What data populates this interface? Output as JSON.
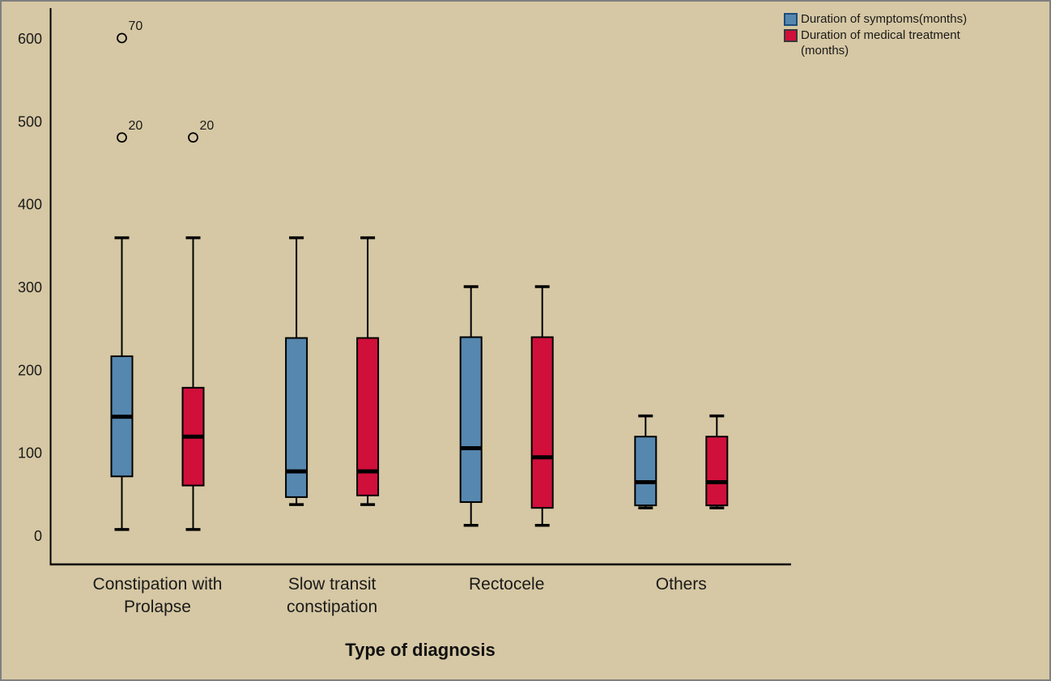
{
  "colors": {
    "background": "#d6c8a4",
    "axis": "#000000",
    "text": "#1a1a1a",
    "series_blue": "#5687af",
    "series_red": "#d00f3a",
    "legend_blue_border": "#1b4e79",
    "legend_red_border": "#3a3a3a"
  },
  "legend": {
    "items": [
      {
        "label": "Duration of symptoms(months)"
      },
      {
        "label": "Duration of medical treatment\n(months)"
      }
    ]
  },
  "chart_data": {
    "type": "boxplot",
    "title": "",
    "xlabel": "Type of diagnosis",
    "ylabel": "",
    "ylim": [
      0,
      620
    ],
    "grid": false,
    "legend_position": "top-right",
    "yticks": [
      0,
      100,
      200,
      300,
      400,
      500,
      600
    ],
    "categories": [
      "Constipation with\nProlapse",
      "Slow transit\nconstipation",
      "Rectocele",
      "Others"
    ],
    "series": [
      {
        "name": "Duration of symptoms(months)",
        "color": "#5687af",
        "boxes": [
          {
            "min": 8,
            "q1": 72,
            "median": 144,
            "q3": 217,
            "max": 360,
            "outliers": [
              {
                "value": 601,
                "label": "70"
              },
              {
                "value": 481,
                "label": "20"
              }
            ]
          },
          {
            "min": 38,
            "q1": 47,
            "median": 78,
            "q3": 239,
            "max": 360,
            "outliers": []
          },
          {
            "min": 13,
            "q1": 41,
            "median": 106,
            "q3": 240,
            "max": 301,
            "outliers": []
          },
          {
            "min": 34,
            "q1": 37,
            "median": 65,
            "q3": 120,
            "max": 145,
            "outliers": []
          }
        ]
      },
      {
        "name": "Duration of medical treatment (months)",
        "color": "#d00f3a",
        "boxes": [
          {
            "min": 8,
            "q1": 61,
            "median": 120,
            "q3": 179,
            "max": 360,
            "outliers": [
              {
                "value": 481,
                "label": "20"
              }
            ]
          },
          {
            "min": 38,
            "q1": 49,
            "median": 78,
            "q3": 239,
            "max": 360,
            "outliers": []
          },
          {
            "min": 13,
            "q1": 34,
            "median": 95,
            "q3": 240,
            "max": 301,
            "outliers": []
          },
          {
            "min": 34,
            "q1": 37,
            "median": 65,
            "q3": 120,
            "max": 145,
            "outliers": []
          }
        ]
      }
    ]
  }
}
